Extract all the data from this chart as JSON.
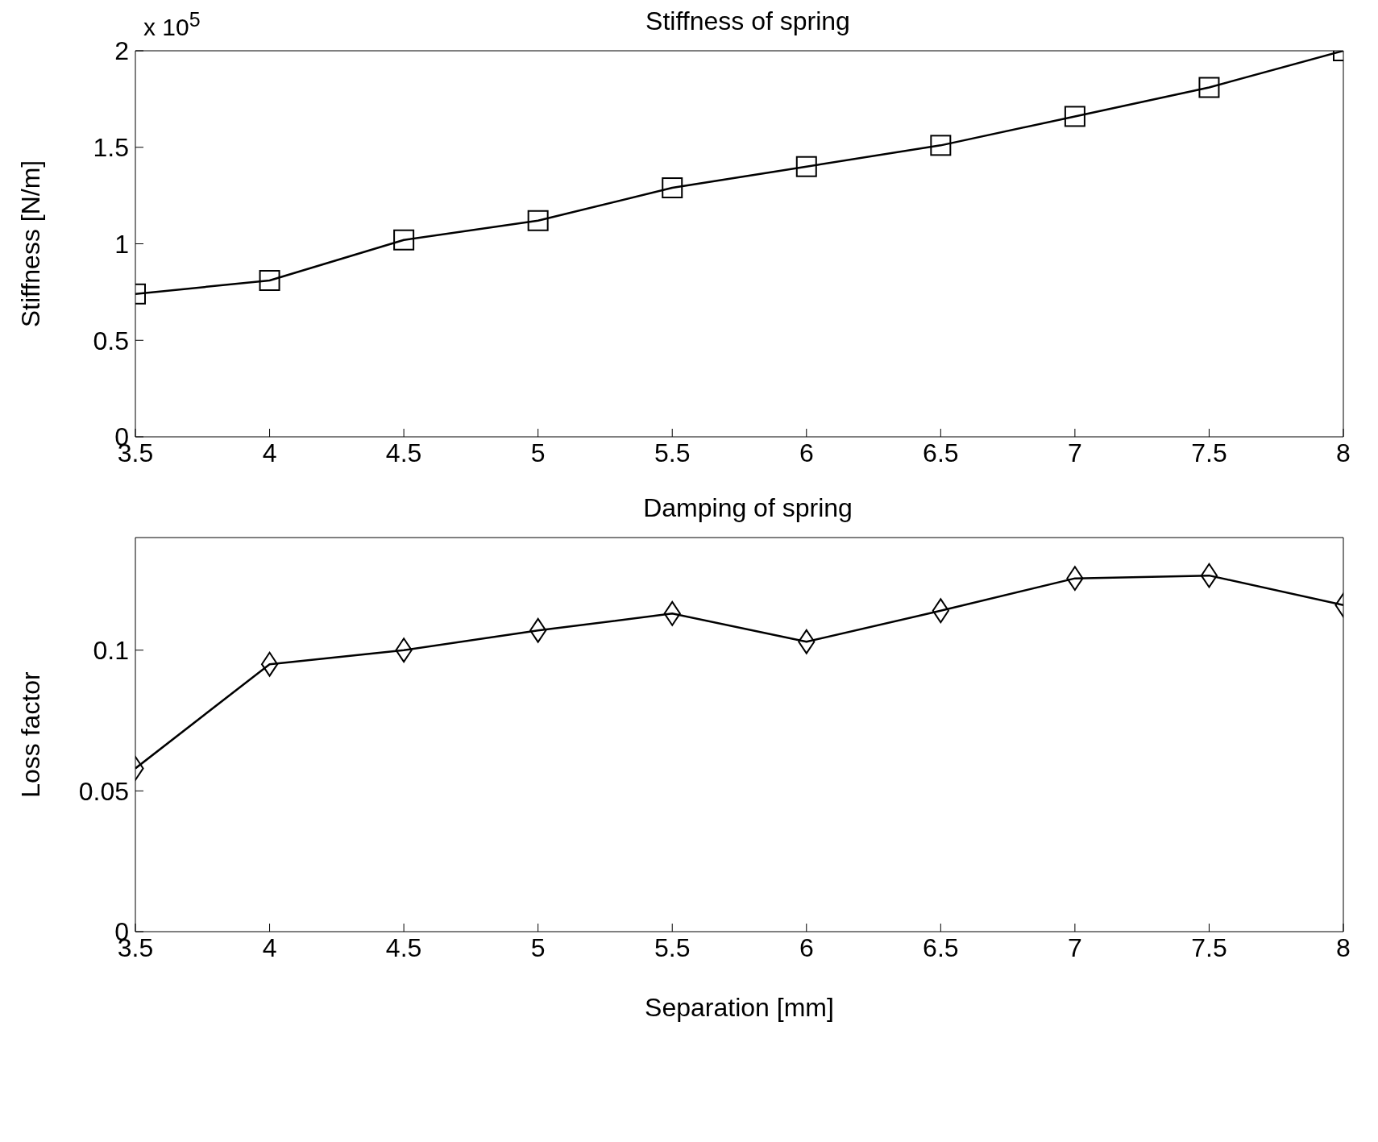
{
  "chart_data": [
    {
      "type": "line",
      "title": "Stiffness of spring",
      "ylabel": "Stiffness [N/m]",
      "annotations": [
        "x 10$^{5}$"
      ],
      "x": [
        3.5,
        4,
        4.5,
        5,
        5.5,
        6,
        6.5,
        7,
        7.5,
        8
      ],
      "series": [
        {
          "color": "#000000",
          "marker": "square",
          "values": [
            0.74,
            0.81,
            1.02,
            1.12,
            1.29,
            1.4,
            1.51,
            1.66,
            1.81,
            2.0
          ]
        }
      ],
      "xlim": [
        3.5,
        8
      ],
      "xticks": [
        3.5,
        4,
        4.5,
        5,
        5.5,
        6,
        6.5,
        7,
        7.5,
        8
      ],
      "ylim": [
        0,
        2
      ],
      "yticks": [
        0,
        0.5,
        1,
        1.5,
        2
      ],
      "grid": false,
      "legend": false,
      "line_style": "solid"
    },
    {
      "type": "line",
      "title": "Damping of spring",
      "xlabel": "Separation [mm]",
      "ylabel": "Loss factor",
      "x": [
        3.5,
        4,
        4.5,
        5,
        5.5,
        6,
        6.5,
        7,
        7.5,
        8
      ],
      "series": [
        {
          "color": "#000000",
          "marker": "diamond",
          "values": [
            0.058,
            0.095,
            0.1,
            0.107,
            0.113,
            0.103,
            0.114,
            0.1255,
            0.1265,
            0.116
          ]
        }
      ],
      "xlim": [
        3.5,
        8
      ],
      "xticks": [
        3.5,
        4,
        4.5,
        5,
        5.5,
        6,
        6.5,
        7,
        7.5,
        8
      ],
      "ylim": [
        0,
        0.14
      ],
      "yticks": [
        0,
        0.05,
        0.1
      ],
      "grid": false,
      "legend": false,
      "line_style": "solid"
    }
  ]
}
